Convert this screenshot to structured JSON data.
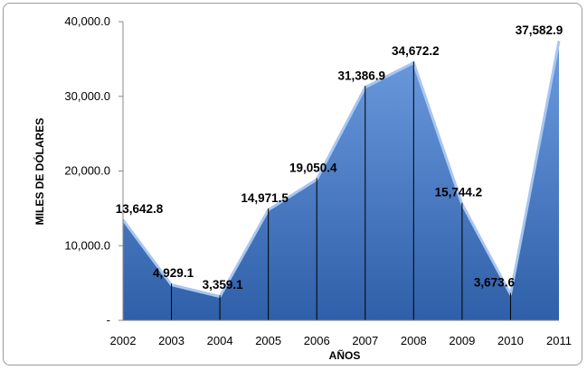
{
  "chart_data": {
    "type": "area",
    "title": "",
    "xlabel": "AÑOS",
    "ylabel": "MILES DE DÓLARES",
    "categories": [
      "2002",
      "2003",
      "2004",
      "2005",
      "2006",
      "2007",
      "2008",
      "2009",
      "2010",
      "2011"
    ],
    "values": [
      13642.8,
      4929.1,
      3359.1,
      14971.5,
      19050.4,
      31386.9,
      34672.2,
      15744.2,
      3673.6,
      37582.9
    ],
    "data_labels": [
      "13,642.8",
      "4,929.1",
      "3,359.1",
      "14,971.5",
      "19,050.4",
      "31,386.9",
      "34,672.2",
      "15,744.2",
      "3,673.6",
      "37,582.9"
    ],
    "y_ticks": [
      0,
      10000,
      20000,
      30000,
      40000
    ],
    "y_tick_labels": [
      "-",
      "10,000.0",
      "20,000.0",
      "30,000.0",
      "40,000.0"
    ],
    "ylim": [
      0,
      40000
    ],
    "grid": false,
    "legend": "none",
    "colors": {
      "fill_dark": "#2f5fa8",
      "fill_light": "#6d9ce0",
      "edge_highlight": "#a9c6f0",
      "drop_line": "#000000"
    }
  }
}
